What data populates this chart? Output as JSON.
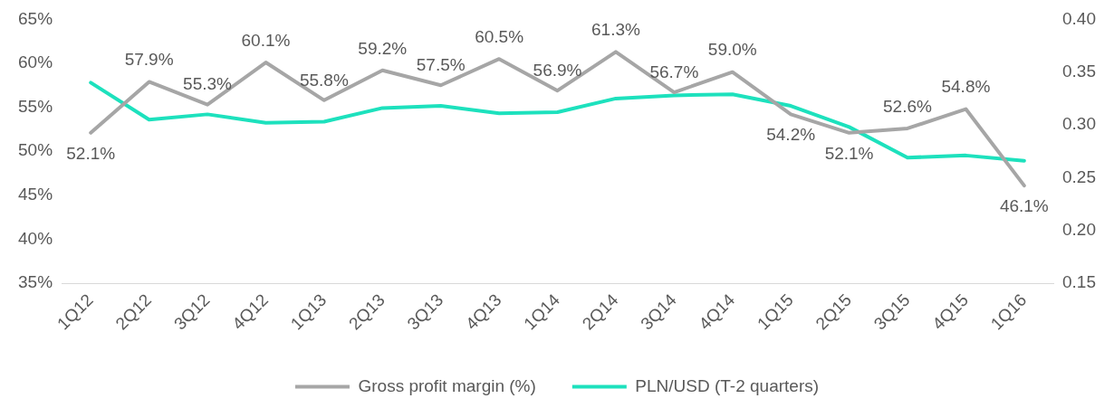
{
  "chart_data": {
    "type": "line",
    "categories": [
      "1Q12",
      "2Q12",
      "3Q12",
      "4Q12",
      "1Q13",
      "2Q13",
      "3Q13",
      "4Q13",
      "1Q14",
      "2Q14",
      "3Q14",
      "4Q14",
      "1Q15",
      "2Q15",
      "3Q15",
      "4Q15",
      "1Q16"
    ],
    "series": [
      {
        "name": "Gross profit margin (%)",
        "color": "#a6a6a6",
        "values": [
          52.1,
          57.9,
          55.3,
          60.1,
          55.8,
          59.2,
          57.5,
          60.5,
          56.9,
          61.3,
          56.7,
          59.0,
          54.2,
          52.1,
          52.6,
          54.8,
          46.1
        ],
        "value_labels": [
          "52.1%",
          "57.9%",
          "55.3%",
          "60.1%",
          "55.8%",
          "59.2%",
          "57.5%",
          "60.5%",
          "56.9%",
          "61.3%",
          "56.7%",
          "59.0%",
          "54.2%",
          "52.1%",
          "52.6%",
          "54.8%",
          "46.1%"
        ]
      },
      {
        "name": "PLN/USD (T-2 quarters)",
        "color": "#1de1bd",
        "axis": "y2",
        "values": [
          0.34,
          0.305,
          0.31,
          0.302,
          0.303,
          0.316,
          0.318,
          0.311,
          0.312,
          0.325,
          0.328,
          0.329,
          0.318,
          0.298,
          0.269,
          0.271,
          0.266
        ]
      }
    ],
    "ylim": [
      35,
      65
    ],
    "yticks": [
      {
        "value": 35,
        "label": "35%"
      },
      {
        "value": 40,
        "label": "40%"
      },
      {
        "value": 45,
        "label": "45%"
      },
      {
        "value": 50,
        "label": "50%"
      },
      {
        "value": 55,
        "label": "55%"
      },
      {
        "value": 60,
        "label": "60%"
      },
      {
        "value": 65,
        "label": "65%"
      }
    ],
    "y2lim": [
      0.15,
      0.4
    ],
    "y2ticks": [
      {
        "value": 0.15,
        "label": "0.15"
      },
      {
        "value": 0.2,
        "label": "0.20"
      },
      {
        "value": 0.25,
        "label": "0.25"
      },
      {
        "value": 0.3,
        "label": "0.30"
      },
      {
        "value": 0.35,
        "label": "0.35"
      },
      {
        "value": 0.4,
        "label": "0.40"
      }
    ],
    "grid": false,
    "legend": "bottom",
    "marker": "none",
    "line_style": "solid"
  }
}
